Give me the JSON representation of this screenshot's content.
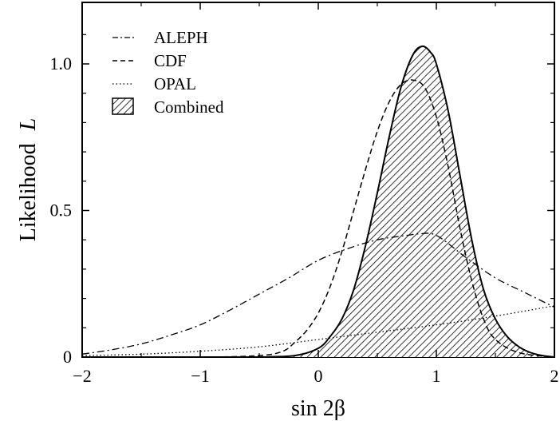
{
  "chart_data": {
    "type": "line",
    "xlabel": "sin 2β",
    "ylabel_main": "Likelihood",
    "ylabel_var": "L",
    "xlim": [
      -2,
      2
    ],
    "ylim": [
      0,
      1.2
    ],
    "xticks": [
      -2,
      -1,
      0,
      1,
      2
    ],
    "xtick_labels": [
      "−2",
      "−1",
      "0",
      "1",
      "2"
    ],
    "yticks": [
      0,
      0.5,
      1.0
    ],
    "ytick_labels": [
      "0",
      "0.5",
      "1.0"
    ],
    "grid": false,
    "legend_position": "top-left",
    "series": [
      {
        "name": "ALEPH",
        "style": "dash-dot",
        "x": [
          -2,
          -1.75,
          -1.5,
          -1.25,
          -1,
          -0.75,
          -0.5,
          -0.25,
          0,
          0.25,
          0.5,
          0.75,
          0.85,
          1,
          1.25,
          1.5,
          1.75,
          2
        ],
        "y": [
          0.01,
          0.025,
          0.045,
          0.075,
          0.11,
          0.16,
          0.215,
          0.27,
          0.33,
          0.37,
          0.4,
          0.415,
          0.42,
          0.415,
          0.34,
          0.27,
          0.22,
          0.17
        ]
      },
      {
        "name": "CDF",
        "style": "dashed",
        "x": [
          -2,
          -1,
          -0.5,
          -0.3,
          -0.2,
          -0.1,
          0,
          0.1,
          0.2,
          0.3,
          0.4,
          0.5,
          0.6,
          0.7,
          0.8,
          0.9,
          1.0,
          1.1,
          1.2,
          1.3,
          1.4,
          1.5,
          1.7,
          2
        ],
        "y": [
          0,
          0,
          0.005,
          0.02,
          0.05,
          0.09,
          0.15,
          0.24,
          0.36,
          0.5,
          0.64,
          0.77,
          0.87,
          0.93,
          0.945,
          0.92,
          0.82,
          0.65,
          0.44,
          0.26,
          0.13,
          0.06,
          0.015,
          0
        ]
      },
      {
        "name": "OPAL",
        "style": "dotted",
        "x": [
          -2,
          -1.5,
          -1,
          -0.5,
          0,
          0.5,
          1,
          1.5,
          2
        ],
        "y": [
          0.005,
          0.01,
          0.02,
          0.035,
          0.06,
          0.085,
          0.11,
          0.14,
          0.175
        ]
      },
      {
        "name": "Combined",
        "style": "hatched-fill",
        "x": [
          -0.5,
          -0.2,
          0,
          0.1,
          0.2,
          0.3,
          0.4,
          0.5,
          0.6,
          0.7,
          0.8,
          0.88,
          0.95,
          1.0,
          1.1,
          1.2,
          1.3,
          1.4,
          1.5,
          1.6,
          1.7,
          1.8,
          1.9,
          2
        ],
        "y": [
          0,
          0.005,
          0.03,
          0.07,
          0.13,
          0.23,
          0.38,
          0.56,
          0.75,
          0.92,
          1.03,
          1.06,
          1.04,
          1.0,
          0.84,
          0.62,
          0.4,
          0.23,
          0.13,
          0.07,
          0.035,
          0.015,
          0.005,
          0
        ]
      }
    ]
  }
}
